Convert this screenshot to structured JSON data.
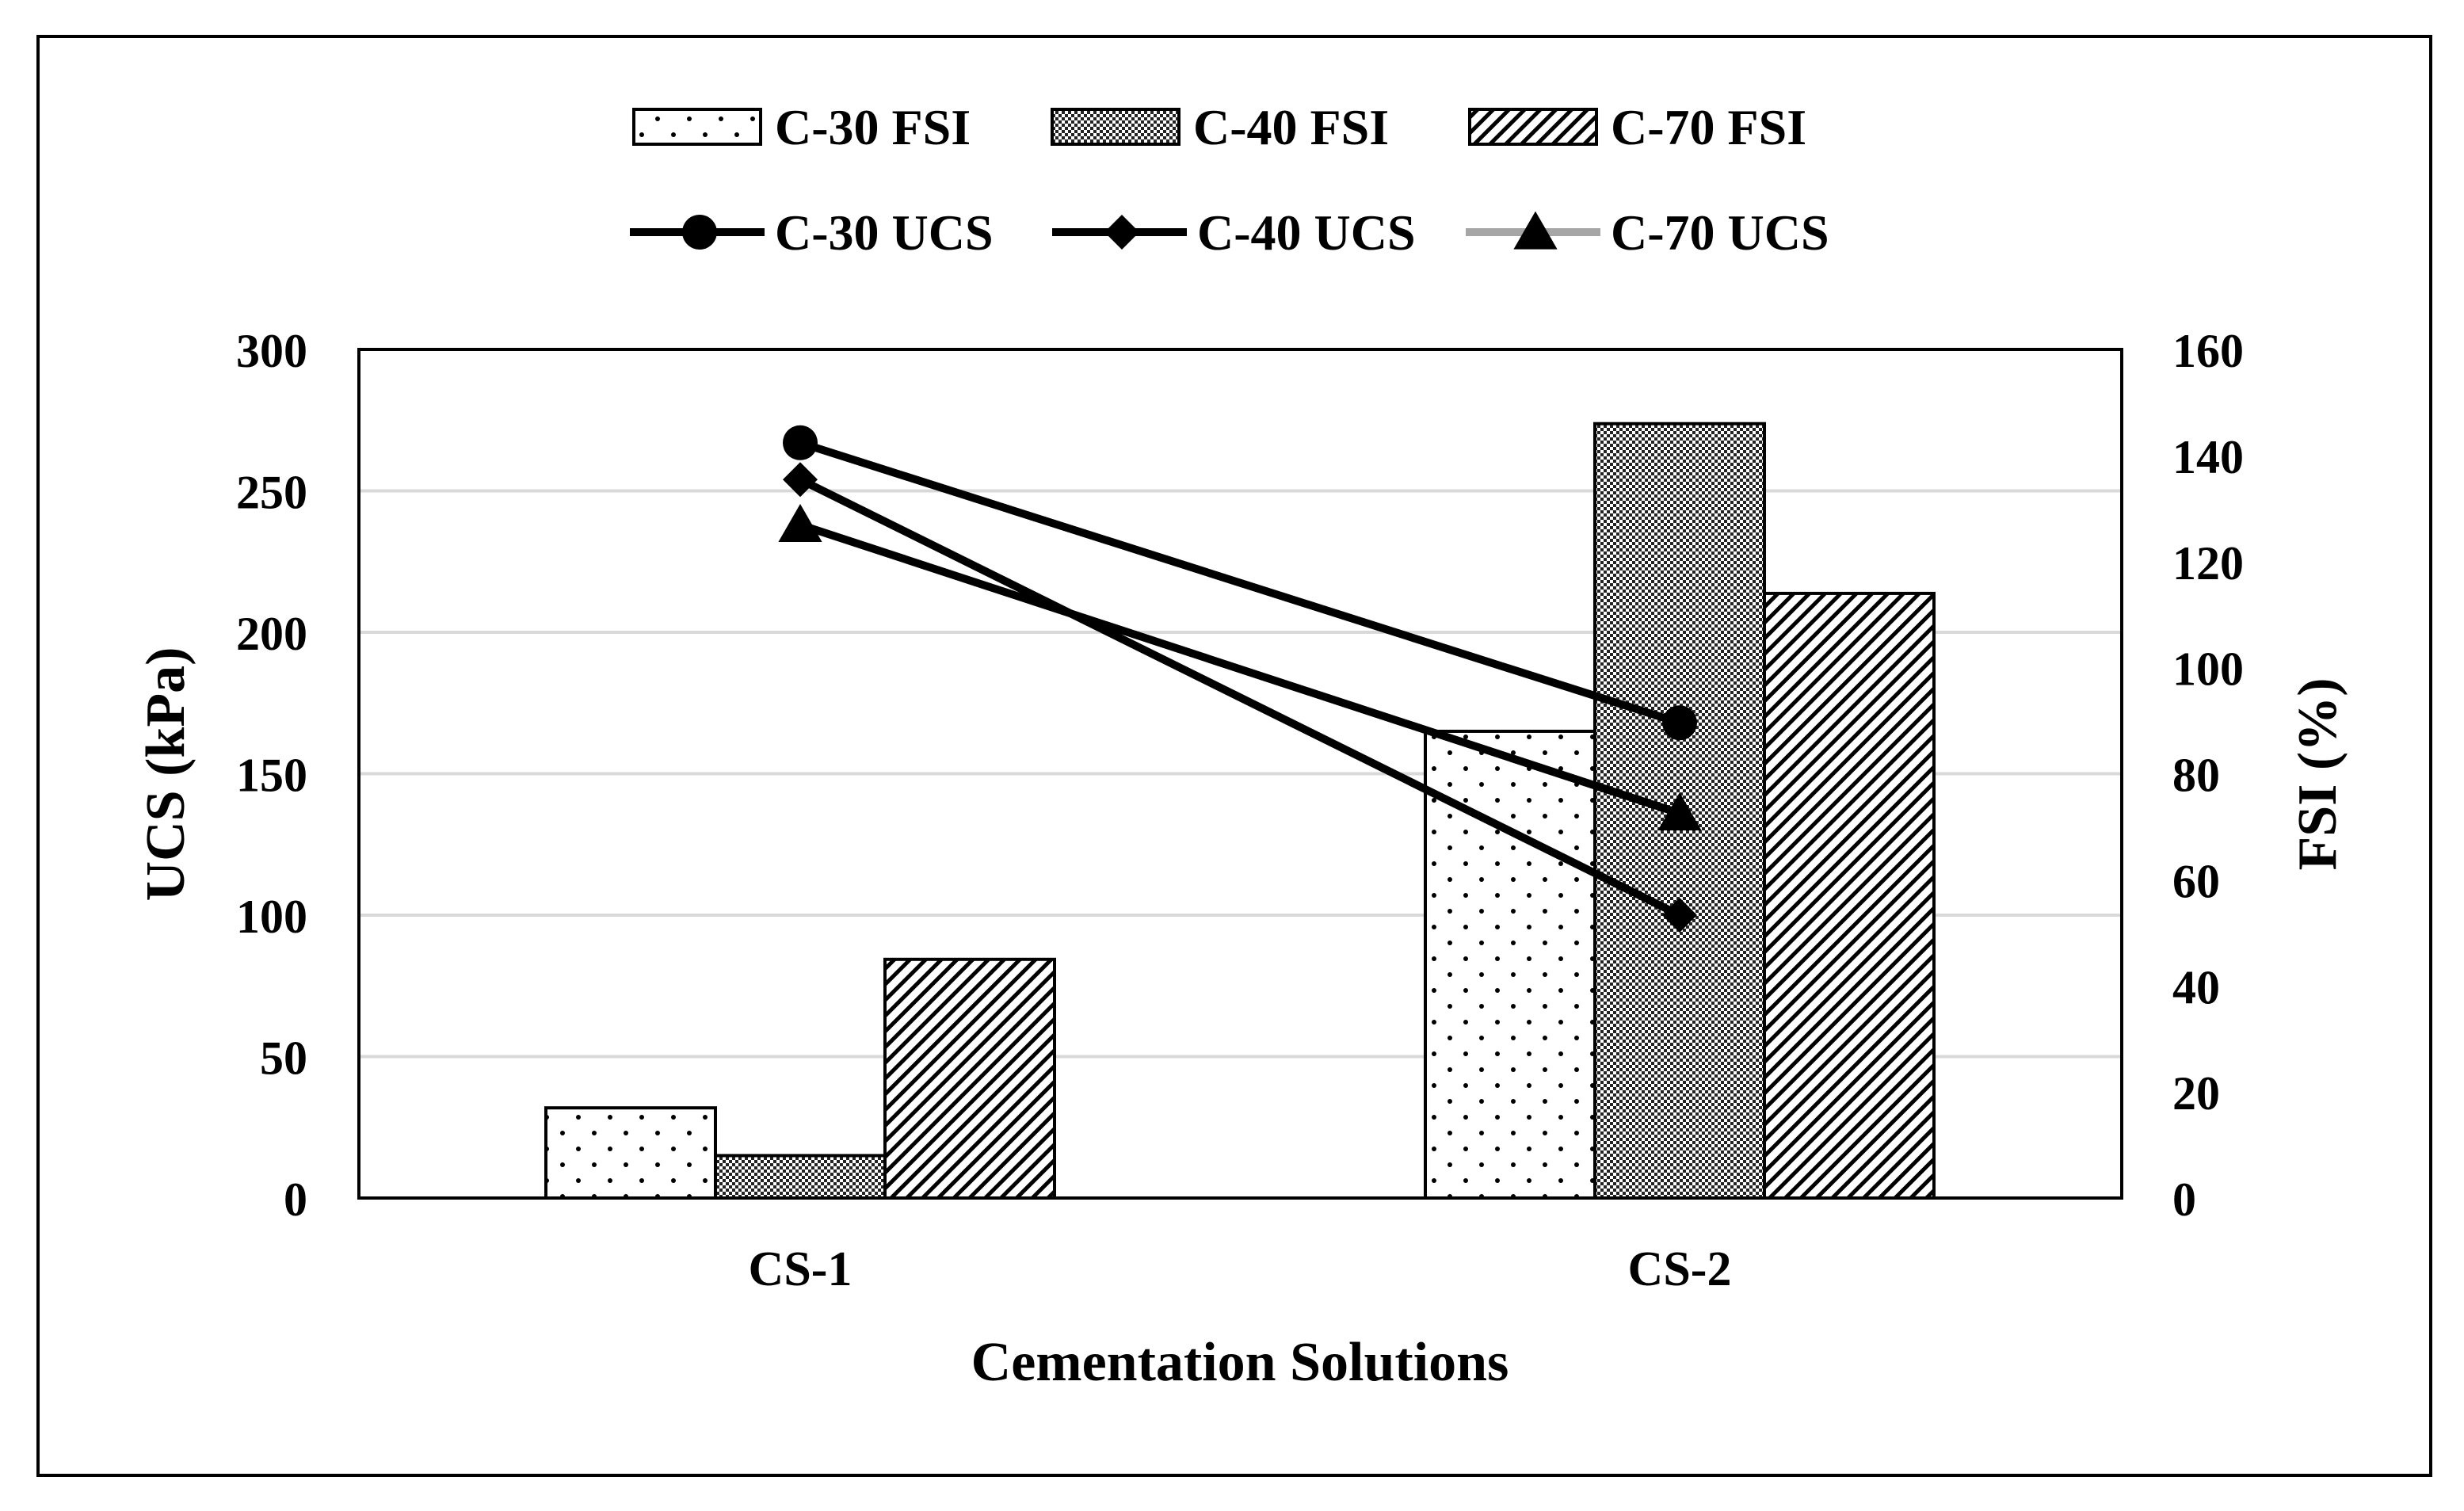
{
  "chart_data": {
    "type": "bar",
    "title": "",
    "categories": [
      "CS-1",
      "CS-2"
    ],
    "xlabel": "Cementation Solutions",
    "ylabel_left": "UCS (kPa)",
    "ylabel_right": "FSI (%)",
    "ylim_left": [
      0,
      300
    ],
    "ylim_right": [
      0,
      160
    ],
    "yticks_left": [
      "0",
      "50",
      "100",
      "150",
      "200",
      "250",
      "300"
    ],
    "yticks_right": [
      "0",
      "20",
      "40",
      "60",
      "80",
      "100",
      "120",
      "140",
      "160"
    ],
    "grid": true,
    "legend_position": "top",
    "bar_series": [
      {
        "name": "C-30 FSI",
        "axis": "right",
        "pattern": "dots",
        "values": [
          17,
          88
        ]
      },
      {
        "name": "C-40 FSI",
        "axis": "right",
        "pattern": "checker",
        "values": [
          8,
          146
        ]
      },
      {
        "name": "C-70 FSI",
        "axis": "right",
        "pattern": "diagonal",
        "values": [
          45,
          114
        ]
      }
    ],
    "line_series": [
      {
        "name": "C-30 UCS",
        "axis": "left",
        "marker": "circle",
        "color": "#000000",
        "values": [
          267,
          168
        ]
      },
      {
        "name": "C-40 UCS",
        "axis": "left",
        "marker": "diamond",
        "color": "#000000",
        "values": [
          254,
          100
        ]
      },
      {
        "name": "C-70 UCS",
        "axis": "left",
        "marker": "triangle",
        "color": "#000000",
        "legend_line_color": "#a6a6a6",
        "values": [
          238,
          136
        ]
      }
    ]
  }
}
